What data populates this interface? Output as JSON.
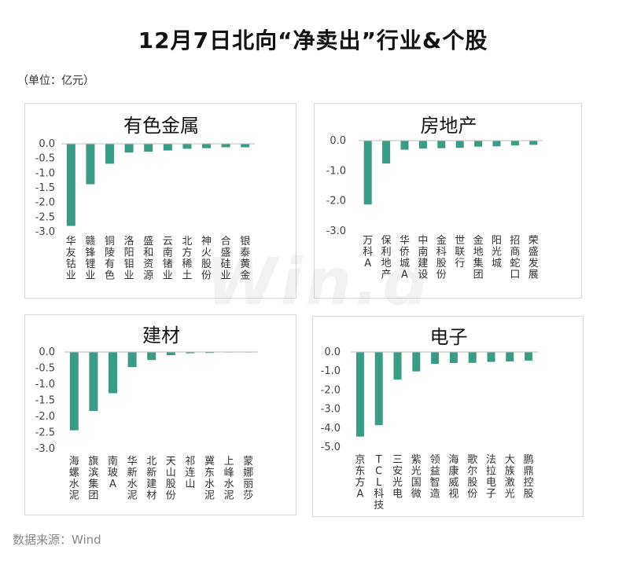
{
  "title": "12月7日北向“净卖出”行业&个股",
  "unit": "（单位：亿元）",
  "source": "数据来源：Wind",
  "watermark": "Win.d",
  "colors": {
    "bar": "#3a9b87",
    "axis": "#bdbdbd"
  },
  "chart_data": [
    {
      "type": "bar",
      "title": "有色金属",
      "categories": [
        "华友钴业",
        "赣锋锂业",
        "铜陵有色",
        "洛阳钼业",
        "盛和资源",
        "云南锗业",
        "北方稀土",
        "神火股份",
        "合盛硅业",
        "银泰黄金"
      ],
      "values": [
        -2.8,
        -1.38,
        -0.68,
        -0.3,
        -0.27,
        -0.23,
        -0.17,
        -0.15,
        -0.12,
        -0.12
      ],
      "yticks": [
        "0.0",
        "-0.5",
        "-1.0",
        "-1.5",
        "-2.0",
        "-2.5",
        "-3.0"
      ],
      "ylim": [
        -3.0,
        0
      ]
    },
    {
      "type": "bar",
      "title": "房地产",
      "categories": [
        "万科A",
        "保利地产",
        "华侨城A",
        "中南建设",
        "金科股份",
        "世联行",
        "金地集团",
        "阳光城",
        "招商蛇口",
        "荣盛发展"
      ],
      "values": [
        -2.12,
        -0.76,
        -0.3,
        -0.26,
        -0.25,
        -0.24,
        -0.2,
        -0.19,
        -0.16,
        -0.14
      ],
      "yticks": [
        "0.0",
        "-1.0",
        "-2.0",
        "-3.0"
      ],
      "ylim": [
        -3.0,
        0
      ]
    },
    {
      "type": "bar",
      "title": "建材",
      "categories": [
        "海螺水泥",
        "旗滨集团",
        "南玻A",
        "华新水泥",
        "北新建材",
        "天山股份",
        "祁连山",
        "冀东水泥",
        "上峰水泥",
        "蒙娜丽莎"
      ],
      "values": [
        -2.43,
        -1.83,
        -1.28,
        -0.47,
        -0.25,
        -0.1,
        -0.04,
        -0.03,
        -0.01,
        -0.01
      ],
      "yticks": [
        "0.0",
        "-0.5",
        "-1.0",
        "-1.5",
        "-2.0",
        "-2.5",
        "-3.0"
      ],
      "ylim": [
        -3.0,
        0
      ]
    },
    {
      "type": "bar",
      "title": "电子",
      "categories": [
        "京东方A",
        "TCL科技",
        "三安光电",
        "紫光国微",
        "领益智造",
        "海康威视",
        "歌尔股份",
        "法拉电子",
        "大族激光",
        "鹏鼎控股"
      ],
      "values": [
        -4.45,
        -3.85,
        -1.45,
        -1.02,
        -0.62,
        -0.58,
        -0.57,
        -0.52,
        -0.5,
        -0.45
      ],
      "yticks": [
        "0.0",
        "-1.0",
        "-2.0",
        "-3.0",
        "-4.0",
        "-5.0"
      ],
      "ylim": [
        -5.0,
        0
      ]
    }
  ]
}
